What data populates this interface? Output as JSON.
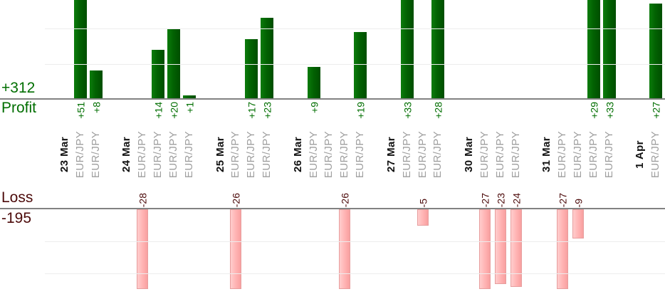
{
  "chart_data": {
    "type": "bar",
    "layout": "dual-panel profit-loss column chart, one column per trade, grouped by date",
    "profit_panel": {
      "label": "Profit",
      "total": "+312",
      "gridlines": [
        10,
        20
      ]
    },
    "loss_panel": {
      "label": "Loss",
      "total": "-195",
      "gridlines": [
        10,
        20
      ]
    },
    "groups": [
      {
        "date": "23 Mar",
        "trades": [
          {
            "symbol": "EUR/JPY",
            "value": 51,
            "label": "+51"
          },
          {
            "symbol": "EUR/JPY",
            "value": 8,
            "label": "+8"
          }
        ]
      },
      {
        "date": "24 Mar",
        "trades": [
          {
            "symbol": "EUR/JPY",
            "value": -28,
            "label": "-28"
          },
          {
            "symbol": "EUR/JPY",
            "value": 14,
            "label": "+14"
          },
          {
            "symbol": "EUR/JPY",
            "value": 20,
            "label": "+20"
          },
          {
            "symbol": "EUR/JPY",
            "value": 1,
            "label": "+1"
          }
        ]
      },
      {
        "date": "25 Mar",
        "trades": [
          {
            "symbol": "EUR/JPY",
            "value": -26,
            "label": "-26"
          },
          {
            "symbol": "EUR/JPY",
            "value": 17,
            "label": "+17"
          },
          {
            "symbol": "EUR/JPY",
            "value": 23,
            "label": "+23"
          }
        ]
      },
      {
        "date": "26 Mar",
        "trades": [
          {
            "symbol": "EUR/JPY",
            "value": 9,
            "label": "+9"
          },
          {
            "symbol": "EUR/JPY",
            "value": 0,
            "label": ""
          },
          {
            "symbol": "EUR/JPY",
            "value": -26,
            "label": "-26"
          },
          {
            "symbol": "EUR/JPY",
            "value": 19,
            "label": "+19"
          }
        ]
      },
      {
        "date": "27 Mar",
        "trades": [
          {
            "symbol": "EUR/JPY",
            "value": 33,
            "label": "+33"
          },
          {
            "symbol": "EUR/JPY",
            "value": -5,
            "label": "-5"
          },
          {
            "symbol": "EUR/JPY",
            "value": 28,
            "label": "+28"
          }
        ]
      },
      {
        "date": "30 Mar",
        "trades": [
          {
            "symbol": "EUR/JPY",
            "value": -27,
            "label": "-27"
          },
          {
            "symbol": "EUR/JPY",
            "value": -23,
            "label": "-23"
          },
          {
            "symbol": "EUR/JPY",
            "value": -24,
            "label": "-24"
          }
        ]
      },
      {
        "date": "31 Mar",
        "trades": [
          {
            "symbol": "EUR/JPY",
            "value": -27,
            "label": "-27"
          },
          {
            "symbol": "EUR/JPY",
            "value": -9,
            "label": "-9"
          },
          {
            "symbol": "EUR/JPY",
            "value": 29,
            "label": "+29"
          },
          {
            "symbol": "EUR/JPY",
            "value": 33,
            "label": "+33"
          }
        ]
      },
      {
        "date": "1 Apr",
        "trades": [
          {
            "symbol": "EUR/JPY",
            "value": 27,
            "label": "+27"
          }
        ]
      }
    ],
    "colors": {
      "profit_bar": "#026202",
      "loss_bar": "#ffb2b2",
      "loss_bar_border": "#e79e9e",
      "profit_text": "#006e00",
      "loss_text": "#4c0a0a",
      "date_text": "#111111",
      "symbol_text": "#9e9e9e",
      "axis_line": "#828282",
      "gridline": "#ededed"
    }
  }
}
